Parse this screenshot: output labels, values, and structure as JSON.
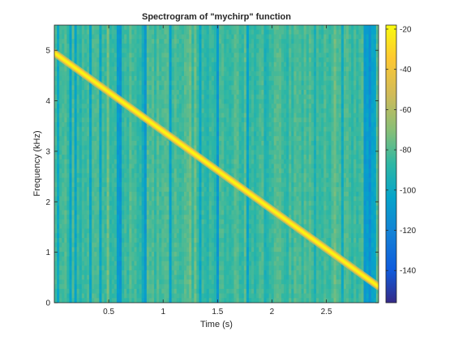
{
  "chart_data": {
    "type": "heatmap",
    "title": "Spectrogram of \"mychirp\" function",
    "xlabel": "Time (s)",
    "ylabel": "Frequency (kHz)",
    "xlim": [
      0.0,
      2.98
    ],
    "ylim": [
      0.0,
      5.5
    ],
    "xticks": [
      0.5,
      1,
      1.5,
      2,
      2.5
    ],
    "xtick_labels": [
      "0.5",
      "1",
      "1.5",
      "2",
      "2.5"
    ],
    "yticks": [
      0,
      1,
      2,
      3,
      4,
      5
    ],
    "ytick_labels": [
      "0",
      "1",
      "2",
      "3",
      "4",
      "5"
    ],
    "colormap": "parula",
    "colorbar": {
      "range": [
        -156,
        -18
      ],
      "ticks": [
        -140,
        -120,
        -100,
        -80,
        -60,
        -40,
        -20
      ],
      "tick_labels": [
        "-140",
        "-120",
        "-100",
        "-80",
        "-60",
        "-40",
        "-20"
      ]
    },
    "chirp_ridge": {
      "start": {
        "time": 0.0,
        "frequency": 4.95
      },
      "end": {
        "time": 2.98,
        "frequency": 0.32
      },
      "peak_level": -20
    },
    "background_level": [
      -95,
      -75
    ],
    "grid": false
  }
}
